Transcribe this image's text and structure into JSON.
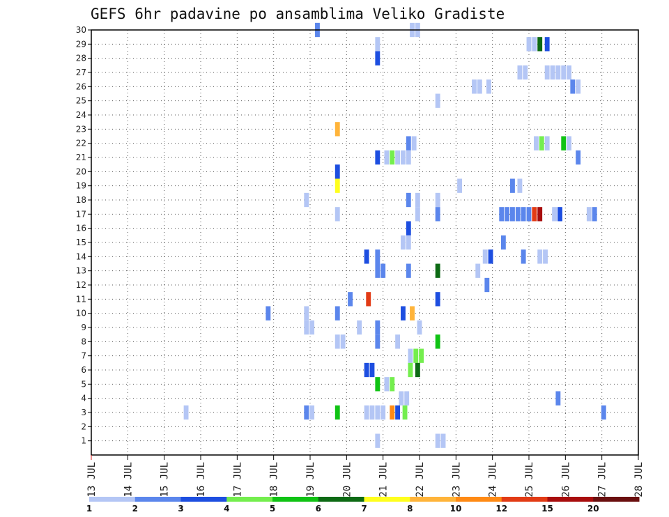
{
  "chart_data": {
    "type": "heatmap",
    "title": "GEFS 6hr padavine po ansamblima Veliko Gradiste",
    "x_labels": [
      "13 JUL",
      "14 JUL",
      "15 JUL",
      "16 JUL",
      "17 JUL",
      "18 JUL",
      "19 JUL",
      "20 JUL",
      "21 JUL",
      "22 JUL",
      "23 JUL",
      "24 JUL",
      "25 JUL",
      "26 JUL",
      "27 JUL",
      "28 JUL"
    ],
    "y_labels": [
      "1",
      "2",
      "3",
      "4",
      "5",
      "6",
      "7",
      "8",
      "9",
      "10",
      "11",
      "12",
      "13",
      "14",
      "15",
      "16",
      "17",
      "18",
      "19",
      "20",
      "21",
      "22",
      "23",
      "24",
      "25",
      "26",
      "27",
      "28",
      "29",
      "30"
    ],
    "x_range_days": [
      13,
      28
    ],
    "y_range": [
      0,
      30
    ],
    "grid": true,
    "legend": {
      "placement": "bottom",
      "labels": [
        "1",
        "2",
        "3",
        "4",
        "5",
        "6",
        "7",
        "8",
        "10",
        "12",
        "15",
        "20"
      ],
      "colors": [
        "#b4c6f5",
        "#5b86ec",
        "#1d4ee0",
        "#74ee4e",
        "#10c314",
        "#0d6a14",
        "#ffff1e",
        "#ffb43a",
        "#ff8a14",
        "#e23b15",
        "#a80d0d",
        "#6a0f0f"
      ]
    },
    "cells": [
      {
        "day": 19.2,
        "member": 30,
        "level": 1
      },
      {
        "day": 21.8,
        "member": 30,
        "level": 0
      },
      {
        "day": 21.95,
        "member": 30,
        "level": 0
      },
      {
        "day": 20.85,
        "member": 29,
        "level": 0
      },
      {
        "day": 25.0,
        "member": 29,
        "level": 0
      },
      {
        "day": 25.15,
        "member": 29,
        "level": 0
      },
      {
        "day": 25.3,
        "member": 29,
        "level": 5
      },
      {
        "day": 25.5,
        "member": 29,
        "level": 2
      },
      {
        "day": 20.85,
        "member": 28,
        "level": 2
      },
      {
        "day": 24.75,
        "member": 27,
        "level": 0
      },
      {
        "day": 24.9,
        "member": 27,
        "level": 0
      },
      {
        "day": 25.5,
        "member": 27,
        "level": 0
      },
      {
        "day": 25.65,
        "member": 27,
        "level": 0
      },
      {
        "day": 25.8,
        "member": 27,
        "level": 0
      },
      {
        "day": 25.95,
        "member": 27,
        "level": 0
      },
      {
        "day": 26.1,
        "member": 27,
        "level": 0
      },
      {
        "day": 23.5,
        "member": 26,
        "level": 0
      },
      {
        "day": 23.65,
        "member": 26,
        "level": 0
      },
      {
        "day": 23.9,
        "member": 26,
        "level": 0
      },
      {
        "day": 26.2,
        "member": 26,
        "level": 1
      },
      {
        "day": 26.35,
        "member": 26,
        "level": 0
      },
      {
        "day": 22.5,
        "member": 25,
        "level": 0
      },
      {
        "day": 19.75,
        "member": 23,
        "level": 7
      },
      {
        "day": 21.7,
        "member": 22,
        "level": 1
      },
      {
        "day": 21.85,
        "member": 22,
        "level": 0
      },
      {
        "day": 25.2,
        "member": 22,
        "level": 0
      },
      {
        "day": 25.35,
        "member": 22,
        "level": 3
      },
      {
        "day": 25.5,
        "member": 22,
        "level": 0
      },
      {
        "day": 25.95,
        "member": 22,
        "level": 4
      },
      {
        "day": 26.1,
        "member": 22,
        "level": 0
      },
      {
        "day": 20.85,
        "member": 21,
        "level": 2
      },
      {
        "day": 21.1,
        "member": 21,
        "level": 0
      },
      {
        "day": 21.25,
        "member": 21,
        "level": 3
      },
      {
        "day": 21.4,
        "member": 21,
        "level": 0
      },
      {
        "day": 21.55,
        "member": 21,
        "level": 0
      },
      {
        "day": 21.7,
        "member": 21,
        "level": 0
      },
      {
        "day": 26.35,
        "member": 21,
        "level": 1
      },
      {
        "day": 19.75,
        "member": 20,
        "level": 2
      },
      {
        "day": 19.75,
        "member": 19,
        "level": 6
      },
      {
        "day": 23.1,
        "member": 19,
        "level": 0
      },
      {
        "day": 24.55,
        "member": 19,
        "level": 1
      },
      {
        "day": 24.75,
        "member": 19,
        "level": 0
      },
      {
        "day": 18.9,
        "member": 18,
        "level": 0
      },
      {
        "day": 21.7,
        "member": 18,
        "level": 1
      },
      {
        "day": 21.95,
        "member": 18,
        "level": 0
      },
      {
        "day": 22.5,
        "member": 18,
        "level": 0
      },
      {
        "day": 19.75,
        "member": 17,
        "level": 0
      },
      {
        "day": 21.95,
        "member": 17,
        "level": 0
      },
      {
        "day": 22.5,
        "member": 17,
        "level": 1
      },
      {
        "day": 24.25,
        "member": 17,
        "level": 1
      },
      {
        "day": 24.4,
        "member": 17,
        "level": 1
      },
      {
        "day": 24.55,
        "member": 17,
        "level": 1
      },
      {
        "day": 24.7,
        "member": 17,
        "level": 1
      },
      {
        "day": 24.85,
        "member": 17,
        "level": 1
      },
      {
        "day": 25.0,
        "member": 17,
        "level": 1
      },
      {
        "day": 25.15,
        "member": 17,
        "level": 9
      },
      {
        "day": 25.3,
        "member": 17,
        "level": 10
      },
      {
        "day": 25.7,
        "member": 17,
        "level": 0
      },
      {
        "day": 25.85,
        "member": 17,
        "level": 2
      },
      {
        "day": 26.65,
        "member": 17,
        "level": 0
      },
      {
        "day": 26.8,
        "member": 17,
        "level": 1
      },
      {
        "day": 21.7,
        "member": 16,
        "level": 2
      },
      {
        "day": 21.55,
        "member": 15,
        "level": 0
      },
      {
        "day": 21.7,
        "member": 15,
        "level": 0
      },
      {
        "day": 24.3,
        "member": 15,
        "level": 1
      },
      {
        "day": 20.55,
        "member": 14,
        "level": 2
      },
      {
        "day": 20.85,
        "member": 14,
        "level": 1
      },
      {
        "day": 23.8,
        "member": 14,
        "level": 0
      },
      {
        "day": 23.95,
        "member": 14,
        "level": 2
      },
      {
        "day": 24.85,
        "member": 14,
        "level": 1
      },
      {
        "day": 25.3,
        "member": 14,
        "level": 0
      },
      {
        "day": 25.45,
        "member": 14,
        "level": 0
      },
      {
        "day": 20.85,
        "member": 13,
        "level": 1
      },
      {
        "day": 21.0,
        "member": 13,
        "level": 1
      },
      {
        "day": 21.7,
        "member": 13,
        "level": 1
      },
      {
        "day": 22.5,
        "member": 13,
        "level": 5
      },
      {
        "day": 23.6,
        "member": 13,
        "level": 0
      },
      {
        "day": 23.85,
        "member": 12,
        "level": 1
      },
      {
        "day": 20.1,
        "member": 11,
        "level": 1
      },
      {
        "day": 20.6,
        "member": 11,
        "level": 9
      },
      {
        "day": 22.5,
        "member": 11,
        "level": 2
      },
      {
        "day": 17.85,
        "member": 10,
        "level": 1
      },
      {
        "day": 18.9,
        "member": 10,
        "level": 0
      },
      {
        "day": 19.75,
        "member": 10,
        "level": 1
      },
      {
        "day": 21.55,
        "member": 10,
        "level": 2
      },
      {
        "day": 21.8,
        "member": 10,
        "level": 7
      },
      {
        "day": 18.9,
        "member": 9,
        "level": 0
      },
      {
        "day": 19.05,
        "member": 9,
        "level": 0
      },
      {
        "day": 20.35,
        "member": 9,
        "level": 0
      },
      {
        "day": 20.85,
        "member": 9,
        "level": 1
      },
      {
        "day": 22.0,
        "member": 9,
        "level": 0
      },
      {
        "day": 19.75,
        "member": 8,
        "level": 0
      },
      {
        "day": 19.9,
        "member": 8,
        "level": 0
      },
      {
        "day": 20.85,
        "member": 8,
        "level": 1
      },
      {
        "day": 21.4,
        "member": 8,
        "level": 0
      },
      {
        "day": 22.5,
        "member": 8,
        "level": 4
      },
      {
        "day": 21.75,
        "member": 7,
        "level": 0
      },
      {
        "day": 21.9,
        "member": 7,
        "level": 3
      },
      {
        "day": 22.05,
        "member": 7,
        "level": 3
      },
      {
        "day": 20.55,
        "member": 6,
        "level": 2
      },
      {
        "day": 20.7,
        "member": 6,
        "level": 2
      },
      {
        "day": 21.75,
        "member": 6,
        "level": 3
      },
      {
        "day": 21.95,
        "member": 6,
        "level": 5
      },
      {
        "day": 20.85,
        "member": 5,
        "level": 4
      },
      {
        "day": 21.1,
        "member": 5,
        "level": 0
      },
      {
        "day": 21.25,
        "member": 5,
        "level": 3
      },
      {
        "day": 21.5,
        "member": 4,
        "level": 0
      },
      {
        "day": 21.65,
        "member": 4,
        "level": 0
      },
      {
        "day": 25.8,
        "member": 4,
        "level": 1
      },
      {
        "day": 15.6,
        "member": 3,
        "level": 0
      },
      {
        "day": 18.9,
        "member": 3,
        "level": 1
      },
      {
        "day": 19.05,
        "member": 3,
        "level": 0
      },
      {
        "day": 19.75,
        "member": 3,
        "level": 4
      },
      {
        "day": 20.55,
        "member": 3,
        "level": 0
      },
      {
        "day": 20.7,
        "member": 3,
        "level": 0
      },
      {
        "day": 20.85,
        "member": 3,
        "level": 0
      },
      {
        "day": 21.0,
        "member": 3,
        "level": 0
      },
      {
        "day": 21.25,
        "member": 3,
        "level": 8
      },
      {
        "day": 21.4,
        "member": 3,
        "level": 2
      },
      {
        "day": 21.6,
        "member": 3,
        "level": 3
      },
      {
        "day": 27.05,
        "member": 3,
        "level": 1
      },
      {
        "day": 20.85,
        "member": 1,
        "level": 0
      },
      {
        "day": 22.5,
        "member": 1,
        "level": 0
      },
      {
        "day": 22.65,
        "member": 1,
        "level": 0
      }
    ]
  }
}
